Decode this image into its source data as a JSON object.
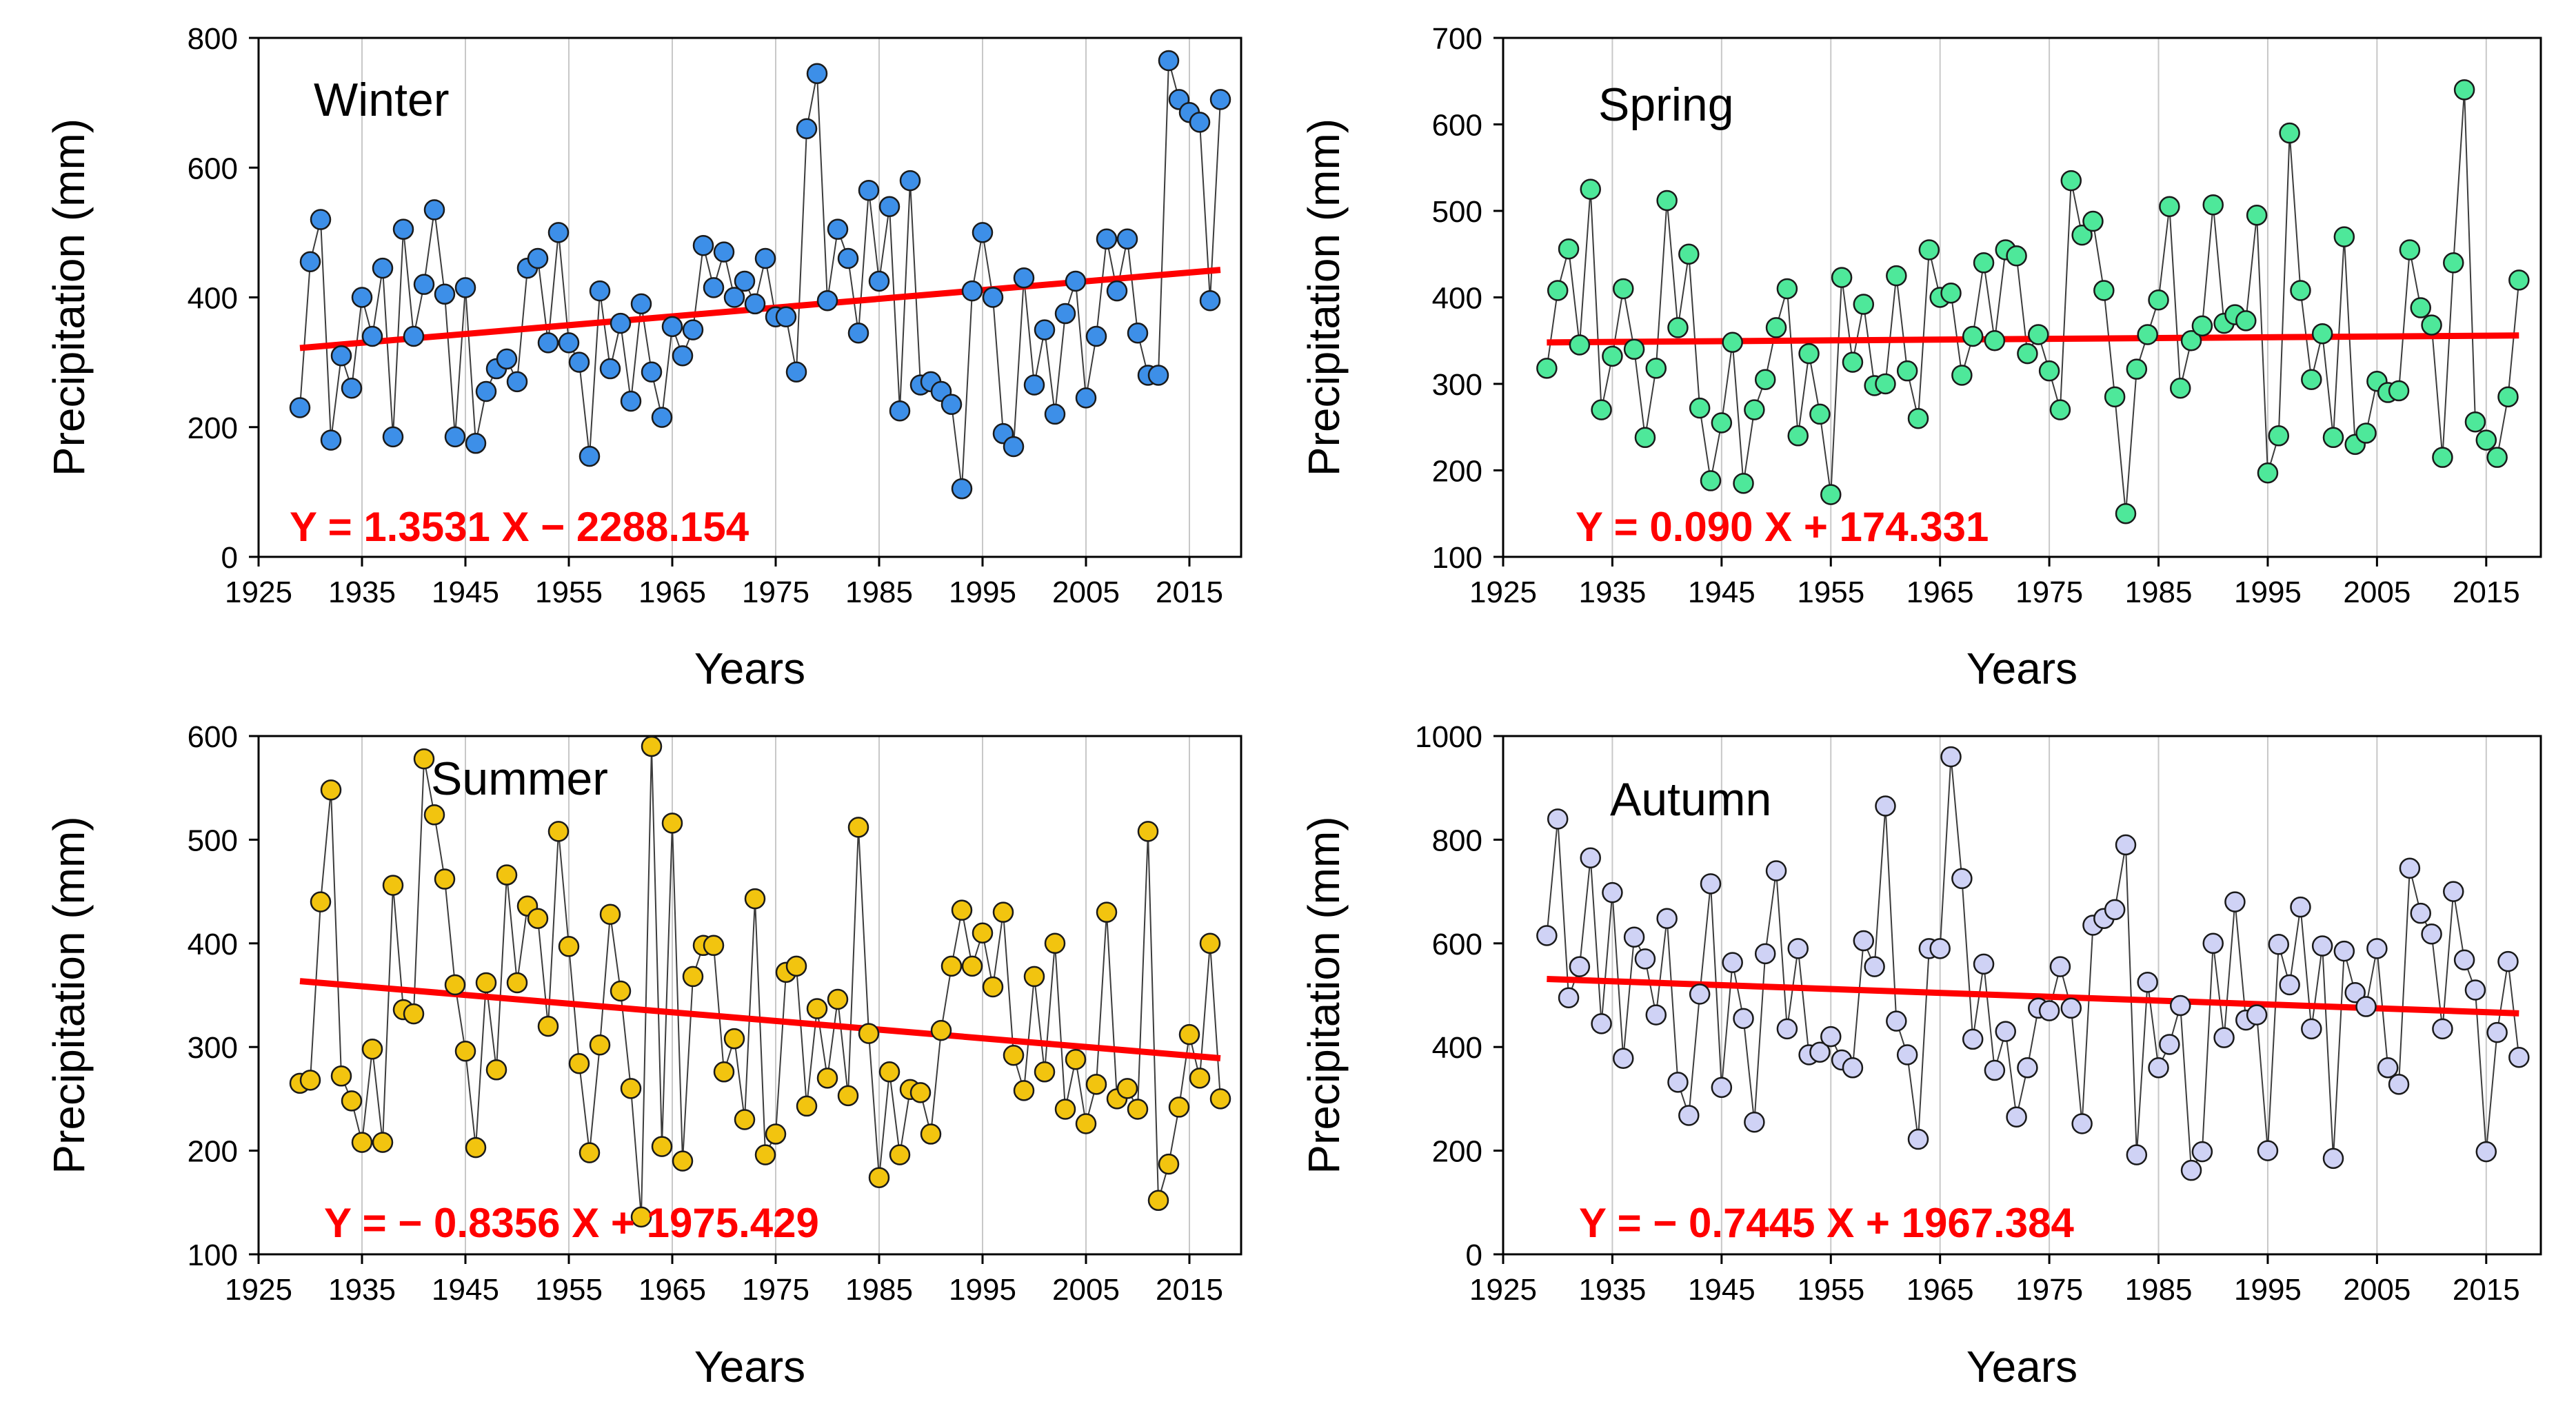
{
  "chart_data": [
    {
      "type": "scatter",
      "title": "Winter",
      "xlabel": "Years",
      "ylabel": "Precipitation (mm)",
      "xlim": [
        1925,
        2020
      ],
      "ylim": [
        0,
        800
      ],
      "xticks": [
        1925,
        1935,
        1945,
        1955,
        1965,
        1975,
        1985,
        1995,
        2005,
        2015
      ],
      "yticks": [
        0,
        200,
        400,
        600,
        800
      ],
      "grid": "vertical",
      "marker_color": "#3d8fe8",
      "x_start": 1929,
      "values": [
        230,
        455,
        520,
        180,
        310,
        260,
        400,
        340,
        445,
        185,
        505,
        340,
        420,
        535,
        405,
        185,
        415,
        175,
        255,
        290,
        305,
        270,
        445,
        460,
        330,
        500,
        330,
        300,
        155,
        410,
        290,
        360,
        240,
        390,
        285,
        215,
        355,
        310,
        350,
        480,
        415,
        470,
        400,
        425,
        390,
        460,
        370,
        370,
        285,
        660,
        745,
        395,
        505,
        460,
        345,
        565,
        425,
        540,
        225,
        580,
        265,
        270,
        255,
        235,
        105,
        410,
        500,
        400,
        190,
        170,
        430,
        265,
        350,
        220,
        375,
        425,
        245,
        340,
        490,
        410,
        490,
        345,
        280,
        280,
        765,
        705,
        685,
        670,
        395,
        705
      ],
      "trend": {
        "slope": 1.3531,
        "intercept": -2288.154,
        "x_from": 1929,
        "x_to": 2018
      },
      "equation": "Y = 1.3531 X − 2288.154"
    },
    {
      "type": "scatter",
      "title": "Spring",
      "xlabel": "Years",
      "ylabel": "Precipitation (mm)",
      "xlim": [
        1925,
        2020
      ],
      "ylim": [
        100,
        700
      ],
      "xticks": [
        1925,
        1935,
        1945,
        1955,
        1965,
        1975,
        1985,
        1995,
        2005,
        2015
      ],
      "yticks": [
        100,
        200,
        300,
        400,
        500,
        600,
        700
      ],
      "grid": "vertical",
      "marker_color": "#4ee89a",
      "x_start": 1929,
      "values": [
        318,
        408,
        456,
        345,
        525,
        270,
        332,
        410,
        340,
        238,
        318,
        512,
        365,
        450,
        272,
        188,
        255,
        348,
        185,
        270,
        305,
        365,
        410,
        240,
        335,
        265,
        172,
        423,
        325,
        392,
        298,
        300,
        425,
        315,
        260,
        455,
        400,
        405,
        310,
        355,
        440,
        350,
        455,
        448,
        335,
        357,
        315,
        270,
        535,
        472,
        488,
        408,
        285,
        150,
        317,
        357,
        397,
        505,
        295,
        350,
        367,
        507,
        370,
        380,
        373,
        495,
        197,
        240,
        590,
        408,
        305,
        358,
        238,
        470,
        230,
        243,
        303,
        290,
        292,
        455,
        388,
        368,
        215,
        440,
        640,
        256,
        235,
        215,
        285,
        420
      ],
      "trend": {
        "slope": 0.09,
        "intercept": 174.331,
        "x_from": 1929,
        "x_to": 2018
      },
      "equation": "Y = 0.090 X + 174.331"
    },
    {
      "type": "scatter",
      "title": "Summer",
      "xlabel": "Years",
      "ylabel": "Precipitation (mm)",
      "xlim": [
        1925,
        2020
      ],
      "ylim": [
        100,
        600
      ],
      "xticks": [
        1925,
        1935,
        1945,
        1955,
        1965,
        1975,
        1985,
        1995,
        2005,
        2015
      ],
      "yticks": [
        100,
        200,
        300,
        400,
        500,
        600
      ],
      "grid": "vertical",
      "marker_color": "#f2c40f",
      "x_start": 1929,
      "values": [
        265,
        268,
        440,
        548,
        272,
        248,
        208,
        298,
        208,
        456,
        336,
        332,
        578,
        524,
        462,
        360,
        296,
        203,
        362,
        278,
        466,
        362,
        436,
        424,
        320,
        508,
        397,
        284,
        198,
        302,
        428,
        354,
        260,
        136,
        590,
        204,
        516,
        190,
        368,
        398,
        398,
        276,
        308,
        230,
        443,
        196,
        216,
        372,
        378,
        243,
        337,
        270,
        346,
        253,
        512,
        313,
        174,
        276,
        196,
        259,
        256,
        216,
        316,
        378,
        432,
        378,
        410,
        358,
        430,
        292,
        258,
        368,
        276,
        400,
        240,
        288,
        226,
        264,
        430,
        250,
        260,
        240,
        508,
        152,
        187,
        242,
        312,
        270,
        400,
        250
      ],
      "trend": {
        "slope": -0.8356,
        "intercept": 1975.429,
        "x_from": 1929,
        "x_to": 2018
      },
      "equation": "Y = − 0.8356 X + 1975.429"
    },
    {
      "type": "scatter",
      "title": "Autumn",
      "xlabel": "Years",
      "ylabel": "Precipitation (mm)",
      "xlim": [
        1925,
        2020
      ],
      "ylim": [
        0,
        1000
      ],
      "xticks": [
        1925,
        1935,
        1945,
        1955,
        1965,
        1975,
        1985,
        1995,
        2005,
        2015
      ],
      "yticks": [
        0,
        200,
        400,
        600,
        800,
        1000
      ],
      "grid": "vertical",
      "marker_color": "#cfd2f5",
      "x_start": 1929,
      "values": [
        615,
        840,
        495,
        555,
        765,
        445,
        698,
        378,
        612,
        570,
        462,
        648,
        332,
        268,
        502,
        715,
        322,
        563,
        455,
        255,
        580,
        740,
        435,
        590,
        385,
        390,
        420,
        375,
        360,
        605,
        555,
        865,
        450,
        385,
        222,
        590,
        590,
        960,
        725,
        415,
        560,
        355,
        430,
        265,
        360,
        475,
        470,
        555,
        475,
        252,
        635,
        648,
        665,
        790,
        192,
        525,
        360,
        405,
        480,
        162,
        198,
        600,
        418,
        680,
        452,
        462,
        200,
        598,
        520,
        670,
        435,
        595,
        185,
        585,
        505,
        478,
        590,
        360,
        328,
        745,
        658,
        618,
        435,
        700,
        568,
        510,
        198,
        428,
        565,
        380
      ],
      "trend": {
        "slope": -0.7445,
        "intercept": 1967.384,
        "x_from": 1929,
        "x_to": 2018
      },
      "equation": "Y = − 0.7445 X + 1967.384"
    }
  ],
  "style": {
    "trend_color": "#ff0000",
    "equation_color": "#ff0000",
    "connector_color": "#3c3c3c",
    "grid_color": "#c8c8c8",
    "axis_color": "#000000"
  }
}
